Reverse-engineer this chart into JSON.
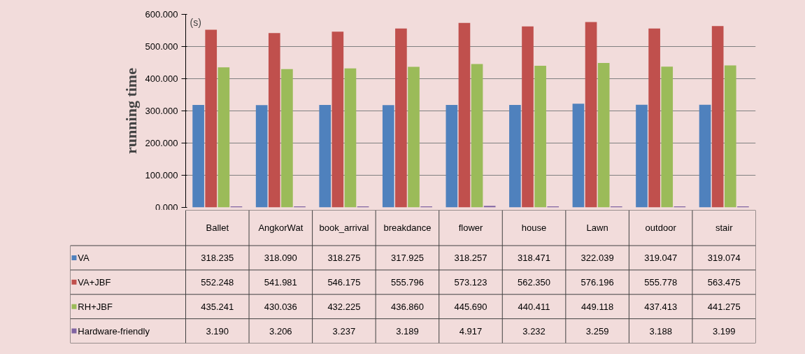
{
  "chart_data": {
    "type": "bar",
    "ylabel": "running time",
    "annotations": [
      "(s)"
    ],
    "categories": [
      "Ballet",
      "AngkorWat",
      "book_arrival",
      "breakdance",
      "flower",
      "house",
      "Lawn",
      "outdoor",
      "stair"
    ],
    "series": [
      {
        "name": "VA",
        "color": "#4f81bd",
        "values": [
          318.235,
          318.09,
          318.275,
          317.925,
          318.257,
          318.471,
          322.039,
          319.047,
          319.074
        ],
        "value_labels": [
          "318.235",
          "318.090",
          "318.275",
          "317.925",
          "318.257",
          "318.471",
          "322.039",
          "319.047",
          "319.074"
        ]
      },
      {
        "name": "VA+JBF",
        "color": "#c0504d",
        "values": [
          552.248,
          541.981,
          546.175,
          555.796,
          573.123,
          562.35,
          576.196,
          555.778,
          563.475
        ],
        "value_labels": [
          "552.248",
          "541.981",
          "546.175",
          "555.796",
          "573.123",
          "562.350",
          "576.196",
          "555.778",
          "563.475"
        ]
      },
      {
        "name": "RH+JBF",
        "color": "#9bbb59",
        "values": [
          435.241,
          430.036,
          432.225,
          436.86,
          445.69,
          440.411,
          449.118,
          437.413,
          441.275
        ],
        "value_labels": [
          "435.241",
          "430.036",
          "432.225",
          "436.860",
          "445.690",
          "440.411",
          "449.118",
          "437.413",
          "441.275"
        ]
      },
      {
        "name": "Hardware-friendly",
        "color": "#8064a2",
        "values": [
          3.19,
          3.206,
          3.237,
          3.189,
          4.917,
          3.232,
          3.259,
          3.188,
          3.199
        ],
        "value_labels": [
          "3.190",
          "3.206",
          "3.237",
          "3.189",
          "4.917",
          "3.232",
          "3.259",
          "3.188",
          "3.199"
        ]
      }
    ],
    "ylim": [
      0,
      600
    ],
    "yticks": [
      {
        "value": 0,
        "label": "0.000"
      },
      {
        "value": 100,
        "label": "100.000"
      },
      {
        "value": 200,
        "label": "200.000"
      },
      {
        "value": 300,
        "label": "300.000"
      },
      {
        "value": 400,
        "label": "400.000"
      },
      {
        "value": 500,
        "label": "500.000"
      },
      {
        "value": 600,
        "label": "600.000"
      }
    ],
    "grid": "y",
    "tick_labels": "y",
    "legend": "bottom"
  }
}
